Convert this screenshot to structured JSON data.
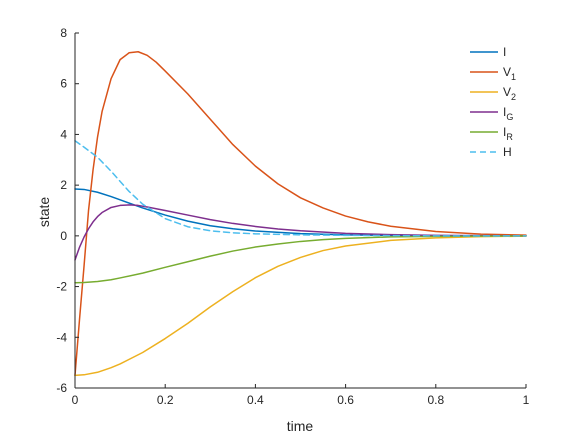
{
  "chart_data": {
    "type": "line",
    "xlabel": "time",
    "ylabel": "state",
    "xlim": [
      0,
      1
    ],
    "ylim": [
      -6,
      8
    ],
    "xticks": [
      0,
      0.2,
      0.4,
      0.6,
      0.8,
      1
    ],
    "xtick_labels": [
      "0",
      "0.2",
      "0.4",
      "0.6",
      "0.8",
      "1"
    ],
    "yticks": [
      -6,
      -4,
      -2,
      0,
      2,
      4,
      6,
      8
    ],
    "ytick_labels": [
      "-6",
      "-4",
      "-2",
      "0",
      "2",
      "4",
      "6",
      "8"
    ],
    "grid": false,
    "legend": "top-right",
    "series": [
      {
        "name": "I",
        "sub": "",
        "color": "#0072BD",
        "dash": false,
        "x": [
          0,
          0.02,
          0.05,
          0.08,
          0.1,
          0.15,
          0.2,
          0.25,
          0.3,
          0.35,
          0.4,
          0.5,
          0.6,
          0.7,
          0.8,
          0.9,
          1.0
        ],
        "y": [
          1.85,
          1.83,
          1.72,
          1.55,
          1.42,
          1.1,
          0.82,
          0.58,
          0.4,
          0.28,
          0.19,
          0.09,
          0.04,
          0.02,
          0.01,
          0.0,
          0.0
        ]
      },
      {
        "name": "V",
        "sub": "1",
        "color": "#D95319",
        "dash": false,
        "x": [
          0,
          0.01,
          0.02,
          0.03,
          0.04,
          0.05,
          0.06,
          0.08,
          0.1,
          0.12,
          0.14,
          0.16,
          0.18,
          0.2,
          0.25,
          0.3,
          0.35,
          0.4,
          0.45,
          0.5,
          0.55,
          0.6,
          0.65,
          0.7,
          0.8,
          0.9,
          1.0
        ],
        "y": [
          -5.5,
          -3.3,
          -1.2,
          1.0,
          2.6,
          3.9,
          4.9,
          6.2,
          6.95,
          7.22,
          7.26,
          7.12,
          6.85,
          6.5,
          5.6,
          4.6,
          3.6,
          2.75,
          2.05,
          1.5,
          1.1,
          0.78,
          0.55,
          0.38,
          0.17,
          0.07,
          0.03
        ]
      },
      {
        "name": "V",
        "sub": "2",
        "color": "#EDB120",
        "dash": false,
        "x": [
          0,
          0.02,
          0.05,
          0.08,
          0.1,
          0.15,
          0.2,
          0.25,
          0.3,
          0.35,
          0.4,
          0.45,
          0.5,
          0.55,
          0.6,
          0.7,
          0.8,
          0.9,
          1.0
        ],
        "y": [
          -5.5,
          -5.48,
          -5.38,
          -5.2,
          -5.05,
          -4.6,
          -4.05,
          -3.45,
          -2.8,
          -2.2,
          -1.65,
          -1.2,
          -0.85,
          -0.58,
          -0.4,
          -0.18,
          -0.08,
          -0.03,
          -0.01
        ]
      },
      {
        "name": "I",
        "sub": "G",
        "color": "#7E2F8E",
        "dash": false,
        "x": [
          0,
          0.01,
          0.02,
          0.03,
          0.04,
          0.05,
          0.06,
          0.08,
          0.1,
          0.12,
          0.14,
          0.16,
          0.18,
          0.2,
          0.25,
          0.3,
          0.35,
          0.4,
          0.45,
          0.5,
          0.6,
          0.7,
          0.8,
          0.9,
          1.0
        ],
        "y": [
          -0.95,
          -0.45,
          -0.05,
          0.28,
          0.55,
          0.76,
          0.92,
          1.12,
          1.2,
          1.22,
          1.2,
          1.14,
          1.07,
          1.0,
          0.82,
          0.64,
          0.49,
          0.37,
          0.27,
          0.2,
          0.1,
          0.05,
          0.02,
          0.01,
          0.0
        ]
      },
      {
        "name": "I",
        "sub": "R",
        "color": "#77AC30",
        "dash": false,
        "x": [
          0,
          0.02,
          0.05,
          0.08,
          0.1,
          0.15,
          0.2,
          0.25,
          0.3,
          0.35,
          0.4,
          0.45,
          0.5,
          0.55,
          0.6,
          0.7,
          0.8,
          0.9,
          1.0
        ],
        "y": [
          -1.85,
          -1.84,
          -1.8,
          -1.73,
          -1.66,
          -1.47,
          -1.24,
          -1.02,
          -0.8,
          -0.6,
          -0.44,
          -0.32,
          -0.22,
          -0.15,
          -0.1,
          -0.04,
          -0.02,
          -0.01,
          0.0
        ]
      },
      {
        "name": "H",
        "sub": "",
        "color": "#4DBEEE",
        "dash": true,
        "x": [
          0,
          0.02,
          0.05,
          0.08,
          0.1,
          0.12,
          0.15,
          0.2,
          0.25,
          0.3,
          0.35,
          0.4,
          0.5,
          0.6,
          0.7,
          0.8,
          0.9,
          1.0
        ],
        "y": [
          3.75,
          3.5,
          3.1,
          2.55,
          2.15,
          1.75,
          1.25,
          0.68,
          0.36,
          0.2,
          0.12,
          0.08,
          0.04,
          0.02,
          0.01,
          0.0,
          0.0,
          0.0
        ]
      }
    ]
  }
}
